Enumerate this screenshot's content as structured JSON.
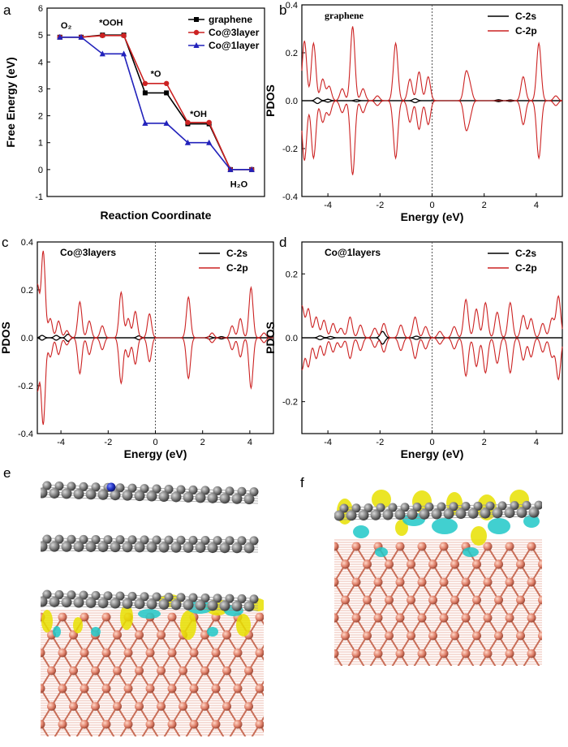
{
  "panel_letters": [
    "a",
    "b",
    "c",
    "d",
    "e",
    "f"
  ],
  "colors": {
    "graphene": "#000000",
    "co3": "#cc2222",
    "co1": "#2222bb",
    "c2s": "#000000",
    "c2p": "#cc2222",
    "carbon": "#7c7c7c",
    "cobalt": "#e0826c",
    "nitrogen": "#2030c0",
    "isosurface_yellow": "#e8e000",
    "isosurface_cyan": "#20c8c8"
  },
  "chart_data": [
    {
      "id": "a",
      "type": "line",
      "xlabel": "Reaction Coordinate",
      "ylabel": "Free Energy (eV)",
      "ylim": [
        -1,
        6
      ],
      "yticks": [
        -1,
        0,
        1,
        2,
        3,
        4,
        5,
        6
      ],
      "x": [
        0,
        1,
        2,
        3,
        4,
        5,
        6,
        7,
        8,
        9
      ],
      "legend": "top-right",
      "annotations": [
        {
          "label": "O₂",
          "x": 0.3,
          "y": 5.25
        },
        {
          "label": "*OOH",
          "x": 2.4,
          "y": 5.35
        },
        {
          "label": "*O",
          "x": 4.5,
          "y": 3.45
        },
        {
          "label": "*OH",
          "x": 6.5,
          "y": 1.95
        },
        {
          "label": "H₂O",
          "x": 8.4,
          "y": -0.65
        }
      ],
      "series": [
        {
          "name": "graphene",
          "color_key": "graphene",
          "marker": "square",
          "values": [
            4.92,
            4.92,
            5.0,
            5.0,
            2.85,
            2.85,
            1.7,
            1.7,
            0.0,
            0.0
          ]
        },
        {
          "name": "Co@3layer",
          "color_key": "co3",
          "marker": "circle",
          "values": [
            4.92,
            4.92,
            4.98,
            4.98,
            3.2,
            3.2,
            1.75,
            1.75,
            0.0,
            0.0
          ]
        },
        {
          "name": "Co@1layer",
          "color_key": "co1",
          "marker": "triangle",
          "values": [
            4.92,
            4.92,
            4.3,
            4.3,
            1.72,
            1.72,
            1.0,
            1.0,
            0.0,
            0.0
          ]
        }
      ]
    },
    {
      "id": "b",
      "type": "line",
      "title": "graphene",
      "xlabel": "Energy (eV)",
      "ylabel": "PDOS",
      "xlim": [
        -5,
        5
      ],
      "ylim": [
        -0.4,
        0.4
      ],
      "xticks": [
        -4,
        -2,
        0,
        2,
        4
      ],
      "yticks": [
        -0.4,
        -0.2,
        0.0,
        0.2,
        0.4
      ],
      "ytick_labels": [
        "-0.4",
        "-0.2",
        "0.0",
        "0.2",
        "0.4"
      ],
      "fermi_level": 0,
      "legend": "top-right",
      "series": [
        {
          "name": "C-2s",
          "color_key": "c2s",
          "peaks": [
            [
              -4.4,
              0.012
            ],
            [
              -4.0,
              0.006
            ],
            [
              -2.9,
              0.004
            ],
            [
              -0.65,
              0.008
            ],
            [
              2.55,
              0.004
            ],
            [
              3.0,
              0.003
            ]
          ]
        },
        {
          "name": "C-2p",
          "color_key": "c2p",
          "peaks": [
            [
              -4.9,
              0.25
            ],
            [
              -4.55,
              0.24
            ],
            [
              -4.2,
              0.09
            ],
            [
              -3.95,
              0.06
            ],
            [
              -3.45,
              0.05
            ],
            [
              -3.05,
              0.31
            ],
            [
              -2.65,
              0.05
            ],
            [
              -2.1,
              0.02
            ],
            [
              -1.4,
              0.24
            ],
            [
              -0.85,
              0.09
            ],
            [
              -0.5,
              0.12
            ],
            [
              -0.15,
              0.1
            ],
            [
              1.3,
              0.11
            ],
            [
              1.45,
              0.06
            ],
            [
              3.5,
              0.1
            ],
            [
              4.1,
              0.24
            ],
            [
              4.75,
              0.02
            ]
          ]
        }
      ]
    },
    {
      "id": "c",
      "type": "line",
      "title": "Co@3layers",
      "xlabel": "Energy (eV)",
      "ylabel": "PDOS",
      "xlim": [
        -5,
        5
      ],
      "ylim": [
        -0.4,
        0.4
      ],
      "xticks": [
        -4,
        -2,
        0,
        2,
        4
      ],
      "yticks": [
        -0.4,
        -0.2,
        0.0,
        0.2,
        0.4
      ],
      "ytick_labels": [
        "-0.4",
        "-0.2",
        "0.0",
        "0.2",
        "0.4"
      ],
      "fermi_level": 0,
      "legend": "top-right",
      "series": [
        {
          "name": "C-2s",
          "color_key": "c2s",
          "peaks": [
            [
              -4.8,
              0.01
            ],
            [
              -4.2,
              0.01
            ],
            [
              -3.7,
              0.015
            ],
            [
              -0.7,
              0.008
            ],
            [
              2.3,
              0.005
            ],
            [
              2.8,
              0.005
            ]
          ]
        },
        {
          "name": "C-2p",
          "color_key": "c2p",
          "peaks": [
            [
              -5.0,
              0.22
            ],
            [
              -4.75,
              0.36
            ],
            [
              -4.45,
              0.08
            ],
            [
              -4.1,
              0.07
            ],
            [
              -3.75,
              0.03
            ],
            [
              -3.2,
              0.15
            ],
            [
              -2.8,
              0.07
            ],
            [
              -2.25,
              0.05
            ],
            [
              -1.45,
              0.19
            ],
            [
              -1.15,
              0.08
            ],
            [
              -0.85,
              0.11
            ],
            [
              -0.25,
              0.1
            ],
            [
              1.4,
              0.17
            ],
            [
              2.4,
              0.02
            ],
            [
              3.25,
              0.05
            ],
            [
              3.6,
              0.08
            ],
            [
              4.05,
              0.21
            ],
            [
              4.6,
              0.02
            ]
          ]
        }
      ]
    },
    {
      "id": "d",
      "type": "line",
      "title": "Co@1layers",
      "xlabel": "Energy (eV)",
      "ylabel": "PDOS",
      "xlim": [
        -5,
        5
      ],
      "ylim": [
        -0.3,
        0.3
      ],
      "xticks": [
        -4,
        -2,
        0,
        2,
        4
      ],
      "yticks": [
        -0.2,
        0.0,
        0.2
      ],
      "ytick_labels": [
        "-0.2",
        "0.0",
        "0.2"
      ],
      "fermi_level": 0,
      "legend": "top-right",
      "series": [
        {
          "name": "C-2s",
          "color_key": "c2s",
          "peaks": [
            [
              -4.3,
              0.006
            ],
            [
              -3.9,
              0.004
            ],
            [
              -1.9,
              0.02
            ],
            [
              -0.6,
              0.005
            ]
          ]
        },
        {
          "name": "C-2p",
          "color_key": "c2p",
          "peaks": [
            [
              -5.0,
              0.1
            ],
            [
              -4.75,
              0.09
            ],
            [
              -4.45,
              0.065
            ],
            [
              -4.15,
              0.055
            ],
            [
              -3.8,
              0.045
            ],
            [
              -3.5,
              0.03
            ],
            [
              -3.15,
              0.065
            ],
            [
              -2.75,
              0.04
            ],
            [
              -2.2,
              0.03
            ],
            [
              -1.85,
              0.045
            ],
            [
              -1.2,
              0.04
            ],
            [
              -0.65,
              0.065
            ],
            [
              -0.25,
              0.035
            ],
            [
              0.3,
              0.02
            ],
            [
              0.85,
              0.035
            ],
            [
              1.3,
              0.12
            ],
            [
              1.7,
              0.09
            ],
            [
              2.05,
              0.11
            ],
            [
              2.5,
              0.08
            ],
            [
              3.0,
              0.11
            ],
            [
              3.5,
              0.07
            ],
            [
              3.8,
              0.06
            ],
            [
              4.25,
              0.045
            ],
            [
              4.6,
              0.06
            ],
            [
              4.85,
              0.13
            ]
          ]
        }
      ]
    }
  ]
}
